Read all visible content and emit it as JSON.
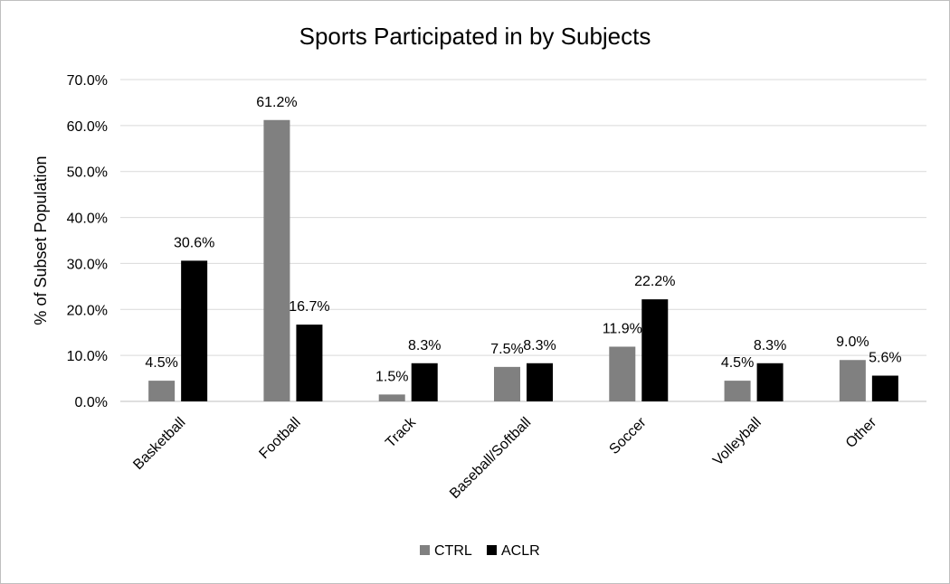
{
  "chart_data": {
    "type": "bar",
    "title": "Sports Participated in by Subjects",
    "xlabel": "",
    "ylabel": "% of Subset Population",
    "ylim": [
      0,
      70
    ],
    "yticks": [
      "0.0%",
      "10.0%",
      "20.0%",
      "30.0%",
      "40.0%",
      "50.0%",
      "60.0%",
      "70.0%"
    ],
    "categories": [
      "Basketball",
      "Football",
      "Track",
      "Baseball/Softball",
      "Soccer",
      "Volleyball",
      "Other"
    ],
    "series": [
      {
        "name": "CTRL",
        "color": "#808080",
        "values": [
          4.5,
          61.2,
          1.5,
          7.5,
          11.9,
          4.5,
          9.0
        ],
        "labels": [
          "4.5%",
          "61.2%",
          "1.5%",
          "7.5%",
          "11.9%",
          "4.5%",
          "9.0%"
        ]
      },
      {
        "name": "ACLR",
        "color": "#000000",
        "values": [
          30.6,
          16.7,
          8.3,
          8.3,
          22.2,
          8.3,
          5.6
        ],
        "labels": [
          "30.6%",
          "16.7%",
          "8.3%",
          "8.3%",
          "22.2%",
          "8.3%",
          "5.6%"
        ]
      }
    ],
    "grid": true,
    "legend": "bottom"
  }
}
